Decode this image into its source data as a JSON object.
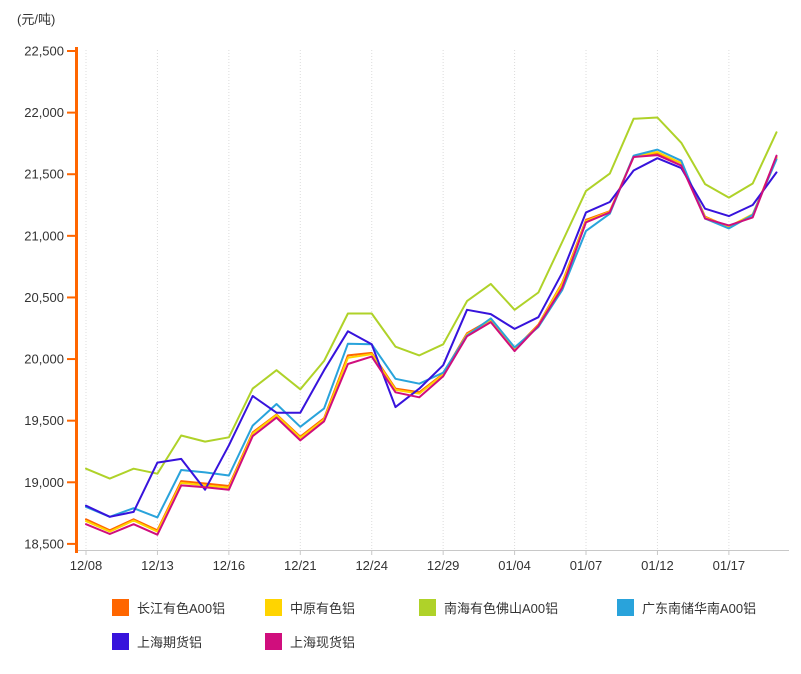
{
  "chart_data": {
    "type": "line",
    "unit_label": "(元/吨)",
    "legend_position": "bottom",
    "grid": "vertical-dotted",
    "colors": {
      "y_axis": "#FF6600",
      "x_axis_line": "#C8C8C8",
      "gridline": "#DCDCDC",
      "text": "#333333"
    },
    "y_axis": {
      "min": 18500,
      "max": 22500,
      "tick_step": 500,
      "ticks": [
        {
          "value": 22500,
          "label": "22,500"
        },
        {
          "value": 22000,
          "label": "22,000"
        },
        {
          "value": 21500,
          "label": "21,500"
        },
        {
          "value": 21000,
          "label": "21,000"
        },
        {
          "value": 20500,
          "label": "20,500"
        },
        {
          "value": 20000,
          "label": "20,000"
        },
        {
          "value": 19500,
          "label": "19,500"
        },
        {
          "value": 19000,
          "label": "19,000"
        },
        {
          "value": 18500,
          "label": "18,500"
        }
      ]
    },
    "x_axis": {
      "point_count": 30,
      "labels": [
        {
          "index": 0,
          "label": "12/08"
        },
        {
          "index": 3,
          "label": "12/13"
        },
        {
          "index": 6,
          "label": "12/16"
        },
        {
          "index": 9,
          "label": "12/21"
        },
        {
          "index": 12,
          "label": "12/24"
        },
        {
          "index": 15,
          "label": "12/29"
        },
        {
          "index": 18,
          "label": "01/04"
        },
        {
          "index": 21,
          "label": "01/07"
        },
        {
          "index": 24,
          "label": "01/12"
        },
        {
          "index": 27,
          "label": "01/17"
        }
      ]
    },
    "series": [
      {
        "name": "长江有色A00铝",
        "color": "#FF6600",
        "values": [
          18700,
          18610,
          18700,
          18610,
          19010,
          18990,
          18970,
          19405,
          19550,
          19370,
          19520,
          20030,
          20050,
          19760,
          19730,
          19880,
          20210,
          20320,
          20080,
          20280,
          20620,
          21130,
          21200,
          21640,
          21670,
          21590,
          21155,
          21070,
          21170,
          21640
        ]
      },
      {
        "name": "中原有色铝",
        "color": "#FFD400",
        "values": [
          18685,
          18600,
          18690,
          18600,
          18995,
          18975,
          18955,
          19395,
          19545,
          19360,
          19510,
          20010,
          20040,
          19750,
          19720,
          19875,
          20200,
          20310,
          20075,
          20275,
          20610,
          21120,
          21195,
          21645,
          21680,
          21590,
          21150,
          21075,
          21175,
          21630
        ]
      },
      {
        "name": "南海有色佛山A00铝",
        "color": "#AFD229",
        "values": [
          19110,
          19030,
          19110,
          19070,
          19380,
          19330,
          19365,
          19760,
          19910,
          19755,
          19985,
          20370,
          20370,
          20100,
          20030,
          20120,
          20470,
          20610,
          20400,
          20540,
          20950,
          21365,
          21505,
          21950,
          21960,
          21755,
          21420,
          21310,
          21425,
          21840
        ]
      },
      {
        "name": "广东南储华南A00铝",
        "color": "#29A3DB",
        "values": [
          18800,
          18720,
          18790,
          18715,
          19100,
          19080,
          19055,
          19460,
          19635,
          19450,
          19600,
          20125,
          20120,
          19840,
          19800,
          19890,
          20190,
          20330,
          20095,
          20260,
          20560,
          21040,
          21180,
          21650,
          21700,
          21610,
          21140,
          21060,
          21170,
          21620
        ]
      },
      {
        "name": "上海期货铝",
        "color": "#3713DC",
        "values": [
          18810,
          18720,
          18760,
          19160,
          19190,
          18940,
          19300,
          19700,
          19565,
          19565,
          19910,
          20225,
          20120,
          19610,
          19760,
          19950,
          20400,
          20365,
          20245,
          20340,
          20700,
          21190,
          21275,
          21530,
          21630,
          21550,
          21220,
          21160,
          21250,
          21515
        ]
      },
      {
        "name": "上海现货铝",
        "color": "#D00E7D",
        "values": [
          18660,
          18580,
          18660,
          18575,
          18975,
          18960,
          18940,
          19375,
          19525,
          19340,
          19495,
          19960,
          20020,
          19730,
          19690,
          19860,
          20185,
          20300,
          20065,
          20270,
          20580,
          21110,
          21190,
          21640,
          21655,
          21570,
          21140,
          21085,
          21150,
          21650
        ]
      }
    ]
  }
}
